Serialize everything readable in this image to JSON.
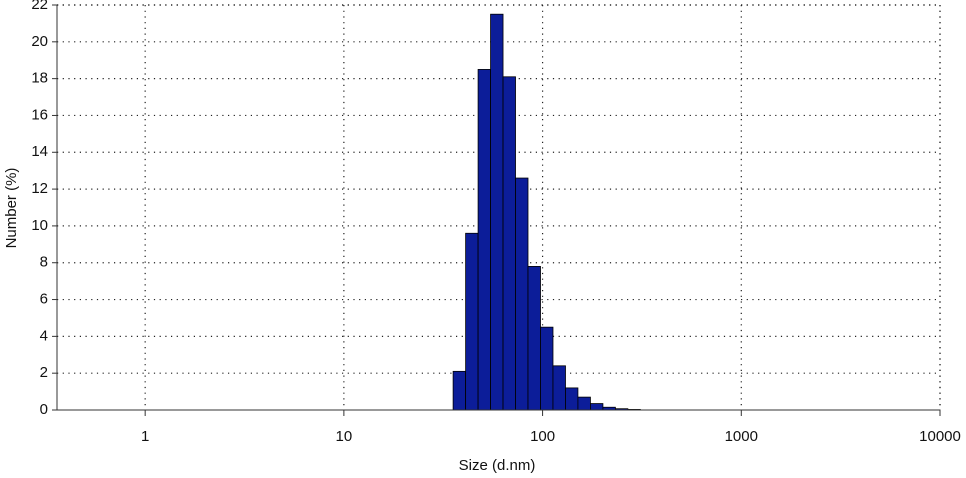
{
  "chart_data": {
    "type": "histogram",
    "xlabel": "Size (d.nm)",
    "ylabel": "Number (%)",
    "bins": [
      35.46,
      40.99,
      47.36,
      54.73,
      63.24,
      73.08,
      84.45,
      97.61,
      112.8,
      130.4,
      150.6,
      174.1,
      201.2,
      232.5,
      268.7,
      310.5
    ],
    "values": [
      2.1,
      9.6,
      18.5,
      21.5,
      18.1,
      12.6,
      7.8,
      4.5,
      2.4,
      1.2,
      0.7,
      0.35,
      0.15,
      0.07,
      0.03
    ],
    "color": "#0c1d99",
    "xscale": "log",
    "xlim": [
      0.36,
      10000
    ],
    "xticks": [
      1,
      10,
      100,
      1000,
      10000
    ],
    "ylim": [
      0,
      22
    ],
    "yticks": [
      0,
      2,
      4,
      6,
      8,
      10,
      12,
      14,
      16,
      18,
      20,
      22
    ],
    "grid": true
  }
}
